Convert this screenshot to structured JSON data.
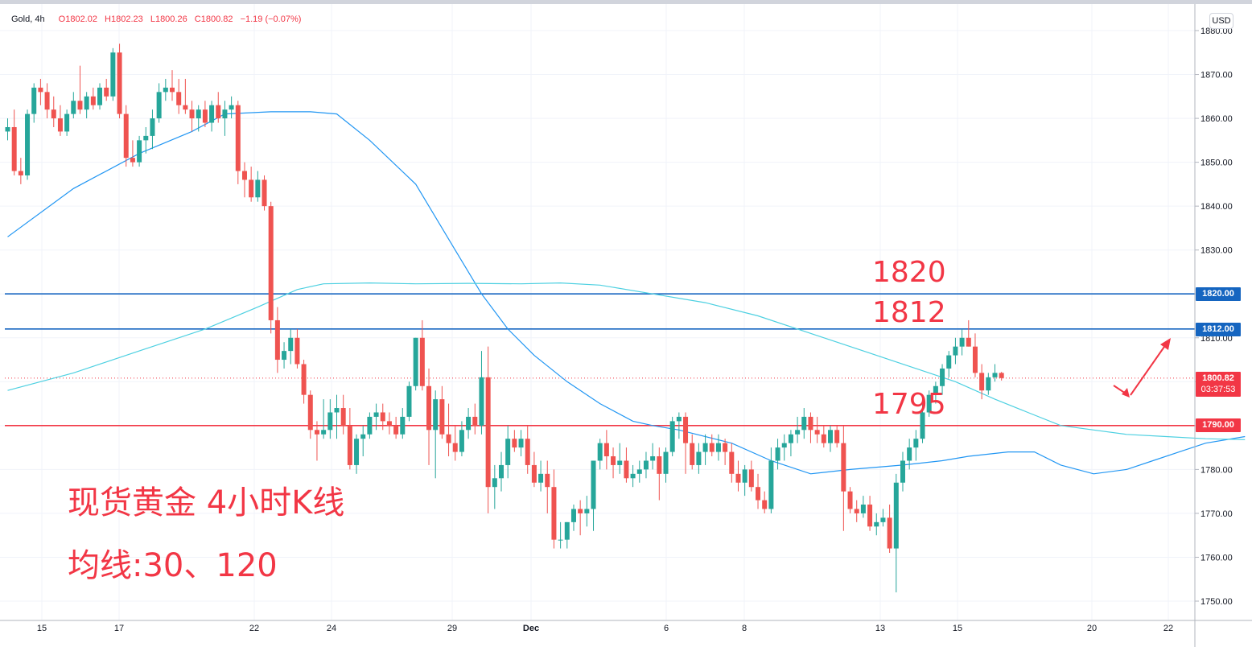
{
  "header": {
    "symbol": "Gold, 4h",
    "open": "O1802.02",
    "high": "H1802.23",
    "low": "L1800.26",
    "close": "C1800.82",
    "change": "−1.19 (−0.07%)",
    "currency": "USD"
  },
  "annotations": {
    "level_1820": "1820",
    "level_1812": "1812",
    "level_1795": "1795",
    "caption_line1": "现货黄金 4小时K线",
    "caption_line2": "均线:30、120"
  },
  "price_tags": {
    "tag_1820": "1820.00",
    "tag_1812": "1812.00",
    "tag_1790": "1790.00",
    "current_price": "1800.82",
    "countdown": "03:37:53"
  },
  "colors": {
    "up": "#26a69a",
    "down": "#ef5350",
    "ma30": "#2196f3",
    "ma120": "#4dd0e1",
    "blue_line": "#1565c0",
    "red_line": "#f23645"
  },
  "chart_data": {
    "type": "candlestick",
    "symbol": "Gold",
    "interval": "4h",
    "ylim": [
      1745,
      1885
    ],
    "y_ticks": [
      "1750.00",
      "1760.00",
      "1770.00",
      "1780.00",
      "1790.00",
      "1800.00",
      "1810.00",
      "1820.00",
      "1830.00",
      "1840.00",
      "1850.00",
      "1860.00",
      "1870.00",
      "1880.00"
    ],
    "x_ticks": [
      "15",
      "17",
      "22",
      "24",
      "29",
      "Dec",
      "6",
      "8",
      "13",
      "15",
      "20",
      "22"
    ],
    "horizontal_lines": [
      {
        "price": 1820,
        "color": "#1565c0"
      },
      {
        "price": 1812,
        "color": "#1565c0"
      },
      {
        "price": 1790,
        "color": "#f23645"
      }
    ],
    "current_price": 1800.82,
    "candles": [
      [
        1857.0,
        1860.0,
        1855.0,
        1858.0
      ],
      [
        1858.0,
        1862.0,
        1847.0,
        1848.0
      ],
      [
        1848.0,
        1851.0,
        1845.0,
        1847.0
      ],
      [
        1847.0,
        1862.0,
        1846.0,
        1861.0
      ],
      [
        1861.0,
        1868.0,
        1859.0,
        1867.0
      ],
      [
        1867.0,
        1869.0,
        1863.0,
        1866.0
      ],
      [
        1866.0,
        1868.0,
        1860.0,
        1862.0
      ],
      [
        1862.0,
        1865.0,
        1858.0,
        1860.0
      ],
      [
        1860.0,
        1863.0,
        1856.0,
        1857.0
      ],
      [
        1857.0,
        1862.0,
        1856.0,
        1861.0
      ],
      [
        1861.0,
        1866.0,
        1860.0,
        1864.0
      ],
      [
        1864.0,
        1872.0,
        1861.0,
        1862.0
      ],
      [
        1862.0,
        1866.0,
        1860.0,
        1865.0
      ],
      [
        1865.0,
        1867.0,
        1862.0,
        1863.0
      ],
      [
        1863.0,
        1868.0,
        1862.0,
        1867.0
      ],
      [
        1867.0,
        1869.0,
        1864.0,
        1865.0
      ],
      [
        1865.0,
        1876.0,
        1864.0,
        1875.0
      ],
      [
        1875.0,
        1877.0,
        1860.0,
        1861.0
      ],
      [
        1861.0,
        1863.0,
        1849.0,
        1851.0
      ],
      [
        1851.0,
        1855.0,
        1849.0,
        1850.0
      ],
      [
        1850.0,
        1856.0,
        1849.0,
        1855.0
      ],
      [
        1855.0,
        1858.0,
        1852.0,
        1856.0
      ],
      [
        1856.0,
        1862.0,
        1853.0,
        1860.0
      ],
      [
        1860.0,
        1868.0,
        1859.0,
        1866.0
      ],
      [
        1866.0,
        1869.0,
        1864.0,
        1867.0
      ],
      [
        1867.0,
        1871.0,
        1864.0,
        1866.0
      ],
      [
        1866.0,
        1869.0,
        1861.0,
        1863.0
      ],
      [
        1863.0,
        1869.0,
        1861.0,
        1862.0
      ],
      [
        1862.0,
        1864.0,
        1857.0,
        1860.0
      ],
      [
        1860.0,
        1863.0,
        1857.0,
        1862.0
      ],
      [
        1862.0,
        1864.0,
        1858.0,
        1859.0
      ],
      [
        1859.0,
        1864.0,
        1857.0,
        1863.0
      ],
      [
        1863.0,
        1866.0,
        1859.0,
        1860.0
      ],
      [
        1860.0,
        1864.0,
        1856.0,
        1862.0
      ],
      [
        1862.0,
        1865.0,
        1860.0,
        1863.0
      ],
      [
        1863.0,
        1864.0,
        1845.0,
        1848.0
      ],
      [
        1848.0,
        1850.0,
        1842.0,
        1846.0
      ],
      [
        1846.0,
        1849.0,
        1841.0,
        1842.0
      ],
      [
        1842.0,
        1848.0,
        1841.0,
        1846.0
      ],
      [
        1846.0,
        1847.0,
        1839.0,
        1840.0
      ],
      [
        1840.0,
        1841.0,
        1811.0,
        1814.0
      ],
      [
        1814.0,
        1817.0,
        1802.0,
        1805.0
      ],
      [
        1805.0,
        1809.0,
        1803.0,
        1807.0
      ],
      [
        1807.0,
        1812.0,
        1804.0,
        1810.0
      ],
      [
        1810.0,
        1812.0,
        1803.0,
        1804.0
      ],
      [
        1804.0,
        1805.0,
        1795.0,
        1797.0
      ],
      [
        1797.0,
        1798.0,
        1787.0,
        1789.0
      ],
      [
        1789.0,
        1791.0,
        1782.0,
        1788.0
      ],
      [
        1788.0,
        1796.0,
        1787.0,
        1789.0
      ],
      [
        1789.0,
        1796.0,
        1787.0,
        1793.0
      ],
      [
        1793.0,
        1797.0,
        1787.0,
        1794.0
      ],
      [
        1794.0,
        1797.0,
        1788.0,
        1790.0
      ],
      [
        1790.0,
        1794.0,
        1780.0,
        1781.0
      ],
      [
        1781.0,
        1788.0,
        1779.0,
        1787.0
      ],
      [
        1787.0,
        1790.0,
        1783.0,
        1788.0
      ],
      [
        1788.0,
        1793.0,
        1787.0,
        1792.0
      ],
      [
        1792.0,
        1795.0,
        1789.0,
        1793.0
      ],
      [
        1793.0,
        1795.0,
        1789.0,
        1791.0
      ],
      [
        1791.0,
        1793.0,
        1788.0,
        1790.0
      ],
      [
        1790.0,
        1792.0,
        1787.0,
        1788.0
      ],
      [
        1788.0,
        1794.0,
        1787.0,
        1792.0
      ],
      [
        1792.0,
        1800.0,
        1791.0,
        1799.0
      ],
      [
        1799.0,
        1810.0,
        1798.0,
        1810.0
      ],
      [
        1810.0,
        1814.0,
        1798.0,
        1799.0
      ],
      [
        1799.0,
        1803.0,
        1781.0,
        1789.0
      ],
      [
        1789.0,
        1798.0,
        1778.0,
        1796.0
      ],
      [
        1796.0,
        1799.0,
        1787.0,
        1788.0
      ],
      [
        1788.0,
        1795.0,
        1783.0,
        1786.0
      ],
      [
        1786.0,
        1790.0,
        1782.0,
        1784.0
      ],
      [
        1784.0,
        1791.0,
        1783.0,
        1789.0
      ],
      [
        1789.0,
        1794.0,
        1787.0,
        1792.0
      ],
      [
        1792.0,
        1795.0,
        1788.0,
        1790.0
      ],
      [
        1790.0,
        1807.0,
        1788.0,
        1801.0
      ],
      [
        1801.0,
        1808.0,
        1770.0,
        1776.0
      ],
      [
        1776.0,
        1781.0,
        1771.0,
        1778.0
      ],
      [
        1778.0,
        1784.0,
        1775.0,
        1781.0
      ],
      [
        1781.0,
        1790.0,
        1778.0,
        1787.0
      ],
      [
        1787.0,
        1789.0,
        1784.0,
        1785.0
      ],
      [
        1785.0,
        1789.0,
        1783.0,
        1787.0
      ],
      [
        1787.0,
        1790.0,
        1779.0,
        1781.0
      ],
      [
        1781.0,
        1784.0,
        1776.0,
        1777.0
      ],
      [
        1777.0,
        1782.0,
        1775.0,
        1779.0
      ],
      [
        1779.0,
        1782.0,
        1770.0,
        1776.0
      ],
      [
        1776.0,
        1780.0,
        1762.0,
        1764.0
      ],
      [
        1764.0,
        1768.0,
        1762.0,
        1764.0
      ],
      [
        1764.0,
        1768.0,
        1762.0,
        1768.0
      ],
      [
        1768.0,
        1772.0,
        1766.0,
        1771.0
      ],
      [
        1771.0,
        1773.0,
        1765.0,
        1770.0
      ],
      [
        1770.0,
        1774.0,
        1767.0,
        1771.0
      ],
      [
        1771.0,
        1782.0,
        1766.0,
        1782.0
      ],
      [
        1782.0,
        1787.0,
        1780.0,
        1786.0
      ],
      [
        1786.0,
        1789.0,
        1780.0,
        1783.0
      ],
      [
        1783.0,
        1785.0,
        1778.0,
        1781.0
      ],
      [
        1781.0,
        1786.0,
        1779.0,
        1782.0
      ],
      [
        1782.0,
        1785.0,
        1777.0,
        1778.0
      ],
      [
        1778.0,
        1781.0,
        1776.0,
        1779.0
      ],
      [
        1779.0,
        1782.0,
        1777.0,
        1780.0
      ],
      [
        1780.0,
        1784.0,
        1778.0,
        1782.0
      ],
      [
        1782.0,
        1786.0,
        1780.0,
        1783.0
      ],
      [
        1783.0,
        1785.0,
        1773.0,
        1779.0
      ],
      [
        1779.0,
        1785.0,
        1777.0,
        1784.0
      ],
      [
        1784.0,
        1792.0,
        1783.0,
        1791.0
      ],
      [
        1791.0,
        1793.0,
        1787.0,
        1792.0
      ],
      [
        1792.0,
        1793.0,
        1779.0,
        1786.0
      ],
      [
        1786.0,
        1788.0,
        1780.0,
        1781.0
      ],
      [
        1781.0,
        1786.0,
        1779.0,
        1784.0
      ],
      [
        1784.0,
        1788.0,
        1781.0,
        1786.0
      ],
      [
        1786.0,
        1788.0,
        1783.0,
        1784.0
      ],
      [
        1784.0,
        1788.0,
        1782.0,
        1786.0
      ],
      [
        1786.0,
        1787.0,
        1781.0,
        1784.0
      ],
      [
        1784.0,
        1786.0,
        1777.0,
        1779.0
      ],
      [
        1779.0,
        1782.0,
        1775.0,
        1777.0
      ],
      [
        1777.0,
        1781.0,
        1774.0,
        1780.0
      ],
      [
        1780.0,
        1782.0,
        1775.0,
        1776.0
      ],
      [
        1776.0,
        1779.0,
        1771.0,
        1773.0
      ],
      [
        1773.0,
        1775.0,
        1770.0,
        1771.0
      ],
      [
        1771.0,
        1785.0,
        1770.0,
        1782.0
      ],
      [
        1782.0,
        1787.0,
        1780.0,
        1785.0
      ],
      [
        1785.0,
        1788.0,
        1782.0,
        1786.0
      ],
      [
        1786.0,
        1789.0,
        1783.0,
        1788.0
      ],
      [
        1788.0,
        1792.0,
        1786.0,
        1789.0
      ],
      [
        1789.0,
        1794.0,
        1787.0,
        1792.0
      ],
      [
        1792.0,
        1793.0,
        1786.0,
        1789.0
      ],
      [
        1789.0,
        1792.0,
        1786.0,
        1788.0
      ],
      [
        1788.0,
        1790.0,
        1785.0,
        1786.0
      ],
      [
        1786.0,
        1790.0,
        1784.0,
        1789.0
      ],
      [
        1789.0,
        1790.0,
        1785.0,
        1786.0
      ],
      [
        1786.0,
        1790.0,
        1766.0,
        1775.0
      ],
      [
        1775.0,
        1776.0,
        1770.0,
        1771.0
      ],
      [
        1771.0,
        1773.0,
        1768.0,
        1770.0
      ],
      [
        1770.0,
        1774.0,
        1769.0,
        1772.0
      ],
      [
        1772.0,
        1774.0,
        1766.0,
        1767.0
      ],
      [
        1767.0,
        1770.0,
        1765.0,
        1768.0
      ],
      [
        1768.0,
        1771.0,
        1767.0,
        1769.0
      ],
      [
        1769.0,
        1772.0,
        1761.0,
        1762.0
      ],
      [
        1762.0,
        1779.0,
        1752.0,
        1777.0
      ],
      [
        1777.0,
        1784.0,
        1775.0,
        1782.0
      ],
      [
        1782.0,
        1787.0,
        1780.0,
        1785.0
      ],
      [
        1785.0,
        1789.0,
        1782.0,
        1787.0
      ],
      [
        1787.0,
        1795.0,
        1786.0,
        1793.0
      ],
      [
        1793.0,
        1798.0,
        1792.0,
        1797.0
      ],
      [
        1797.0,
        1800.0,
        1795.0,
        1799.0
      ],
      [
        1799.0,
        1804.0,
        1797.0,
        1803.0
      ],
      [
        1803.0,
        1807.0,
        1801.0,
        1806.0
      ],
      [
        1806.0,
        1810.0,
        1804.0,
        1808.0
      ],
      [
        1808.0,
        1812.0,
        1806.0,
        1810.0
      ],
      [
        1810.0,
        1814.0,
        1808.0,
        1808.0
      ],
      [
        1808.0,
        1811.0,
        1801.0,
        1802.0
      ],
      [
        1802.0,
        1804.0,
        1796.0,
        1798.0
      ],
      [
        1798.0,
        1802.0,
        1797.0,
        1801.0
      ],
      [
        1801.0,
        1804.0,
        1800.0,
        1802.0
      ],
      [
        1802.0,
        1802.23,
        1800.26,
        1800.82
      ]
    ],
    "ma_lines": [
      {
        "name": "MA30",
        "color": "#2196f3",
        "points": [
          [
            0,
            1833
          ],
          [
            10,
            1844
          ],
          [
            20,
            1852
          ],
          [
            28,
            1857
          ],
          [
            33,
            1861
          ],
          [
            40,
            1861.5
          ],
          [
            46,
            1861.5
          ],
          [
            50,
            1861
          ],
          [
            55,
            1855
          ],
          [
            62,
            1845
          ],
          [
            68,
            1830
          ],
          [
            72,
            1820
          ],
          [
            76,
            1812
          ],
          [
            80,
            1806
          ],
          [
            85,
            1800
          ],
          [
            90,
            1795
          ],
          [
            95,
            1791
          ],
          [
            98,
            1790
          ],
          [
            102,
            1789
          ],
          [
            110,
            1786
          ],
          [
            116,
            1782
          ],
          [
            122,
            1779
          ],
          [
            128,
            1780
          ],
          [
            136,
            1781
          ],
          [
            142,
            1782
          ],
          [
            146,
            1783
          ],
          [
            152,
            1784
          ],
          [
            156,
            1784
          ],
          [
            160,
            1781
          ],
          [
            165,
            1779
          ],
          [
            170,
            1780
          ],
          [
            174,
            1782
          ],
          [
            178,
            1784
          ],
          [
            182,
            1786
          ],
          [
            188,
            1787.5
          ]
        ]
      },
      {
        "name": "MA120",
        "color": "#4dd0e1",
        "points": [
          [
            0,
            1798
          ],
          [
            10,
            1802
          ],
          [
            20,
            1807
          ],
          [
            30,
            1812
          ],
          [
            38,
            1817
          ],
          [
            44,
            1821
          ],
          [
            48,
            1822.3
          ],
          [
            55,
            1822.5
          ],
          [
            62,
            1822.3
          ],
          [
            70,
            1822.4
          ],
          [
            78,
            1822.3
          ],
          [
            84,
            1822.5
          ],
          [
            90,
            1822
          ],
          [
            98,
            1820
          ],
          [
            106,
            1818
          ],
          [
            114,
            1815
          ],
          [
            122,
            1811
          ],
          [
            130,
            1807
          ],
          [
            138,
            1803
          ],
          [
            144,
            1800
          ],
          [
            150,
            1796
          ],
          [
            155,
            1793
          ],
          [
            160,
            1790
          ],
          [
            165,
            1789
          ],
          [
            170,
            1788
          ],
          [
            176,
            1787.5
          ],
          [
            182,
            1787
          ],
          [
            188,
            1786.8
          ]
        ]
      }
    ]
  }
}
